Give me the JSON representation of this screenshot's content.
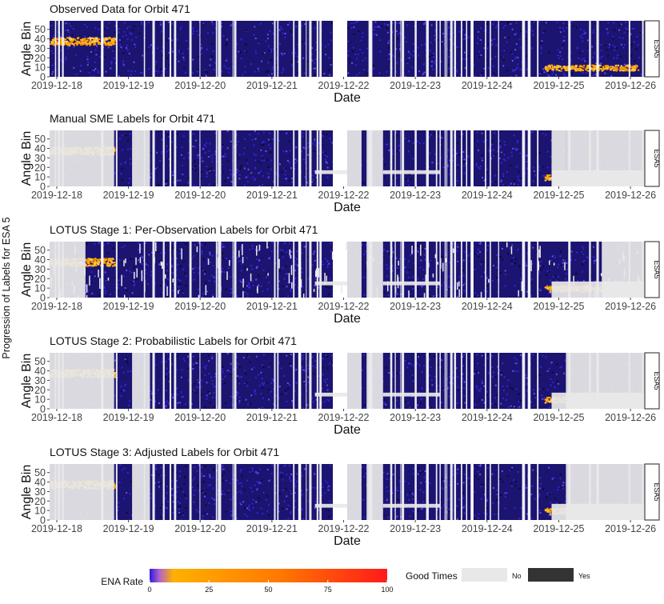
{
  "figure": {
    "y_axis_title": "Progression of Labels for ESA 5",
    "strip_label": "ESA5",
    "x_axis_label": "Date",
    "y_axis_label": "Angle Bin"
  },
  "chart_data": {
    "type": "heatmap",
    "x_ticks": [
      "2019-12-18",
      "2019-12-19",
      "2019-12-20",
      "2019-12-21",
      "2019-12-22",
      "2019-12-23",
      "2019-12-24",
      "2019-12-25",
      "2019-12-26"
    ],
    "y_ticks": [
      0,
      10,
      20,
      30,
      40,
      50
    ],
    "ylim": [
      0,
      59
    ],
    "xlim_days": [
      -0.1,
      8.2
    ],
    "panels": [
      {
        "title": "Observed Data for Orbit 471",
        "labels": [],
        "partial_labels": [],
        "scatter_gaps": false
      },
      {
        "title": "Manual SME Labels for Orbit 471",
        "labels": [
          [
            -0.1,
            0.8
          ],
          [
            1.05,
            1.3
          ],
          [
            4.05,
            4.25
          ],
          [
            4.32,
            4.55
          ],
          [
            7.1,
            8.2
          ],
          [
            6.9,
            7.1
          ]
        ],
        "partial_labels": [
          [
            3.6,
            4.05,
            13,
            17
          ],
          [
            4.55,
            5.35,
            13,
            17
          ],
          [
            6.9,
            8.2,
            0,
            17
          ]
        ],
        "scatter_gaps": false
      },
      {
        "title": "LOTUS Stage 1: Per-Observation Labels for Orbit 471",
        "labels": [
          [
            -0.1,
            0.4
          ],
          [
            4.05,
            4.25
          ],
          [
            4.32,
            4.55
          ],
          [
            7.6,
            8.2
          ]
        ],
        "partial_labels": [
          [
            3.6,
            4.05,
            13,
            17
          ],
          [
            4.55,
            5.35,
            13,
            17
          ],
          [
            6.9,
            8.2,
            0,
            17
          ]
        ],
        "scatter_gaps": true
      },
      {
        "title": "LOTUS Stage 2: Probabilistic Labels for Orbit 471",
        "labels": [
          [
            -0.1,
            0.8
          ],
          [
            1.05,
            1.3
          ],
          [
            4.05,
            4.25
          ],
          [
            4.32,
            4.55
          ],
          [
            7.1,
            8.2
          ]
        ],
        "partial_labels": [
          [
            3.6,
            4.05,
            13,
            17
          ],
          [
            4.55,
            5.35,
            13,
            17
          ],
          [
            6.9,
            8.2,
            0,
            17
          ]
        ],
        "scatter_gaps": false
      },
      {
        "title": "LOTUS Stage 3: Adjusted Labels for Orbit 471",
        "labels": [
          [
            -0.1,
            0.8
          ],
          [
            1.05,
            1.3
          ],
          [
            4.05,
            4.25
          ],
          [
            4.32,
            4.55
          ],
          [
            7.1,
            8.2
          ]
        ],
        "partial_labels": [
          [
            3.6,
            4.05,
            13,
            17
          ],
          [
            4.55,
            5.35,
            13,
            17
          ],
          [
            6.9,
            8.2,
            0,
            17
          ]
        ],
        "scatter_gaps": false
      }
    ],
    "hotspots": [
      {
        "x_start": -0.1,
        "x_end": 0.8,
        "angle": 38,
        "thickness": 8
      },
      {
        "x_start": 6.8,
        "x_end": 8.1,
        "angle": 10,
        "thickness": 6
      }
    ],
    "data_gaps": [
      [
        3.85,
        4.05
      ]
    ],
    "colorbar": {
      "title": "ENA Rate",
      "ticks": [
        0,
        25,
        50,
        75,
        100
      ],
      "colors": [
        "#2b1bd8",
        "#b060d0",
        "#ffb000",
        "#ff7800",
        "#ff1a1a"
      ]
    },
    "good_times_legend": {
      "title": "Good Times",
      "entries": [
        {
          "label": "No",
          "color": "#e8e8e8"
        },
        {
          "label": "Yes",
          "color": "#333333"
        }
      ]
    }
  }
}
